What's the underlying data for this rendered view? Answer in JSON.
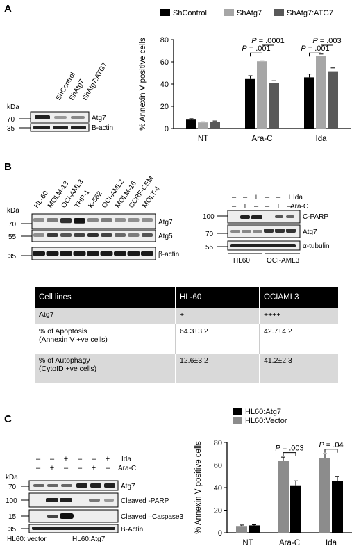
{
  "panels": {
    "a": "A",
    "b": "B",
    "c": "C"
  },
  "chartA": {
    "chart_data": {
      "type": "bar",
      "categories": [
        "NT",
        "Ara-C",
        "Ida"
      ],
      "series": [
        {
          "name": "ShControl",
          "values": [
            8,
            44.5,
            46
          ],
          "errors": [
            0.8,
            3,
            3
          ],
          "color": "#000000"
        },
        {
          "name": "ShAtg7",
          "values": [
            5.5,
            60.5,
            65
          ],
          "errors": [
            0.5,
            1,
            2
          ],
          "color": "#a6a6a6"
        },
        {
          "name": "ShAtg7:ATG7",
          "values": [
            6,
            41,
            51.5
          ],
          "errors": [
            0.8,
            2,
            3
          ],
          "color": "#595959"
        }
      ],
      "ylabel": "% Annexin V positive cells",
      "ylim": [
        0,
        80
      ],
      "yticks": [
        0,
        20,
        40,
        60,
        80
      ],
      "legend": "top",
      "annotations": [
        {
          "text": "P = .001",
          "cat": 1,
          "from": 0,
          "to": 1,
          "y": 68
        },
        {
          "text": "P = .0001",
          "cat": 1,
          "from": 1,
          "to": 2,
          "y": 75
        },
        {
          "text": "P = .001",
          "cat": 2,
          "from": 0,
          "to": 1,
          "y": 68
        },
        {
          "text": "P = .003",
          "cat": 2,
          "from": 1,
          "to": 2,
          "y": 75
        }
      ]
    }
  },
  "chartC": {
    "chart_data": {
      "type": "bar",
      "categories": [
        "NT",
        "Ara-C",
        "Ida"
      ],
      "series": [
        {
          "name": "HL60:Vector",
          "values": [
            6,
            64,
            66
          ],
          "errors": [
            0.8,
            3,
            4
          ],
          "color": "#8c8c8c"
        },
        {
          "name": "HL60:Atg7",
          "values": [
            6.5,
            42,
            46
          ],
          "errors": [
            0.6,
            4,
            4
          ],
          "color": "#000000"
        }
      ],
      "legend_order": [
        "HL60:Atg7",
        "HL60:Vector"
      ],
      "ylabel": "% Annexin V positive cells",
      "ylim": [
        0,
        80
      ],
      "yticks": [
        0,
        20,
        40,
        60,
        80
      ],
      "legend": "top",
      "annotations": [
        {
          "text": "P = .003",
          "cat": 1,
          "y": 71
        },
        {
          "text": "P = .04",
          "cat": 2,
          "y": 74
        }
      ]
    }
  },
  "blotA": {
    "kda": "kDa",
    "lanes": [
      "ShControl",
      "ShAtg7",
      "ShAtg7:ATG7"
    ],
    "markers": [
      "70",
      "35"
    ],
    "bands": [
      "Atg7",
      "B-actin"
    ]
  },
  "blotB1": {
    "kda": "kDa",
    "lanes": [
      "HL-60",
      "MOLM-13",
      "OCI-AML3",
      "THP-1",
      "K-562",
      "OCI-AML2",
      "MOLM-16",
      "CCRF-CEM",
      "MOLT-4"
    ],
    "markers": [
      "70",
      "55",
      "35"
    ],
    "bands": [
      "Atg7",
      "Atg5",
      "β-actin"
    ]
  },
  "blotB2": {
    "row_ida": [
      "–",
      "–",
      "+",
      "–",
      "–",
      "+"
    ],
    "row_arac": [
      "–",
      "+",
      "–",
      "–",
      "+",
      "–"
    ],
    "treat_ida": "Ida",
    "treat_arac": "Ara-C",
    "markers": [
      "100",
      "70",
      "55"
    ],
    "bands": [
      "C-PARP",
      "Atg7",
      "α-tubulin"
    ],
    "groups": [
      "HL60",
      "OCI-AML3"
    ]
  },
  "blotC": {
    "kda": "kDa",
    "row_ida": [
      "–",
      "–",
      "+",
      "–",
      "–",
      "+"
    ],
    "row_arac": [
      "–",
      "+",
      "–",
      "–",
      "+",
      "–"
    ],
    "treat_ida": "Ida",
    "treat_arac": "Ara-C",
    "markers": [
      "70",
      "100",
      "15",
      "35"
    ],
    "bands": [
      "Atg7",
      "Cleaved -PARP",
      "Cleaved –Caspase3",
      "B-Actin"
    ],
    "groups": [
      "HL60: vector",
      "HL60:Atg7"
    ]
  },
  "table": {
    "headers": [
      "Cell lines",
      "HL-60",
      "OCIAML3"
    ],
    "rows": [
      [
        "Atg7",
        "+",
        "++++"
      ],
      [
        "% of Apoptosis\n(Annexin V +ve cells)",
        "64.3±3.2",
        "42.7±4.2"
      ],
      [
        "% of Autophagy\n(CytoID +ve cells)",
        "12.6±3.2",
        "41.2±2.3"
      ]
    ]
  }
}
